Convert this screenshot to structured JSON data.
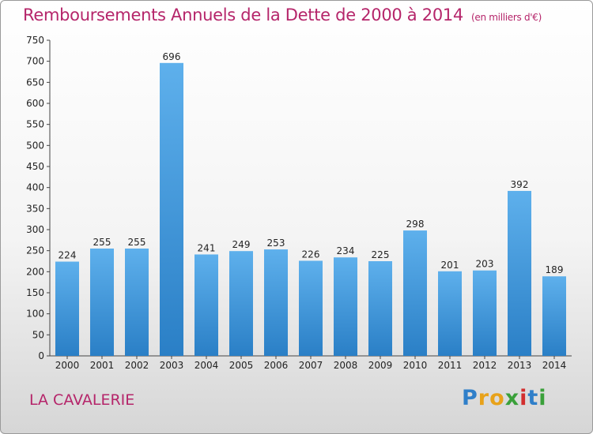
{
  "header": {
    "title": "Remboursements Annuels de la Dette de 2000 à 2014",
    "unit": "(en milliers d'€)"
  },
  "footer": {
    "commune": "LA CAVALERIE",
    "logo_text": "Proxiti"
  },
  "colors": {
    "title": "#b5256a",
    "bar_top": "#5eb0ec",
    "bar_bottom": "#2a7fc6",
    "logo": [
      "#2f7fc9",
      "#e8a21a",
      "#e8a21a",
      "#3aa03a",
      "#d22f2f",
      "#2f7fc9",
      "#3aa03a"
    ]
  },
  "chart_data": {
    "type": "bar",
    "title": "Remboursements Annuels de la Dette de 2000 à 2014",
    "xlabel": "",
    "ylabel": "",
    "categories": [
      "2000",
      "2001",
      "2002",
      "2003",
      "2004",
      "2005",
      "2006",
      "2007",
      "2008",
      "2009",
      "2010",
      "2011",
      "2012",
      "2013",
      "2014"
    ],
    "values": [
      224,
      255,
      255,
      696,
      241,
      249,
      253,
      226,
      234,
      225,
      298,
      201,
      203,
      392,
      189
    ],
    "ylim": [
      0,
      750
    ],
    "yticks": [
      0,
      50,
      100,
      150,
      200,
      250,
      300,
      350,
      400,
      450,
      500,
      550,
      600,
      650,
      700,
      750
    ],
    "grid": false,
    "legend": "none"
  }
}
